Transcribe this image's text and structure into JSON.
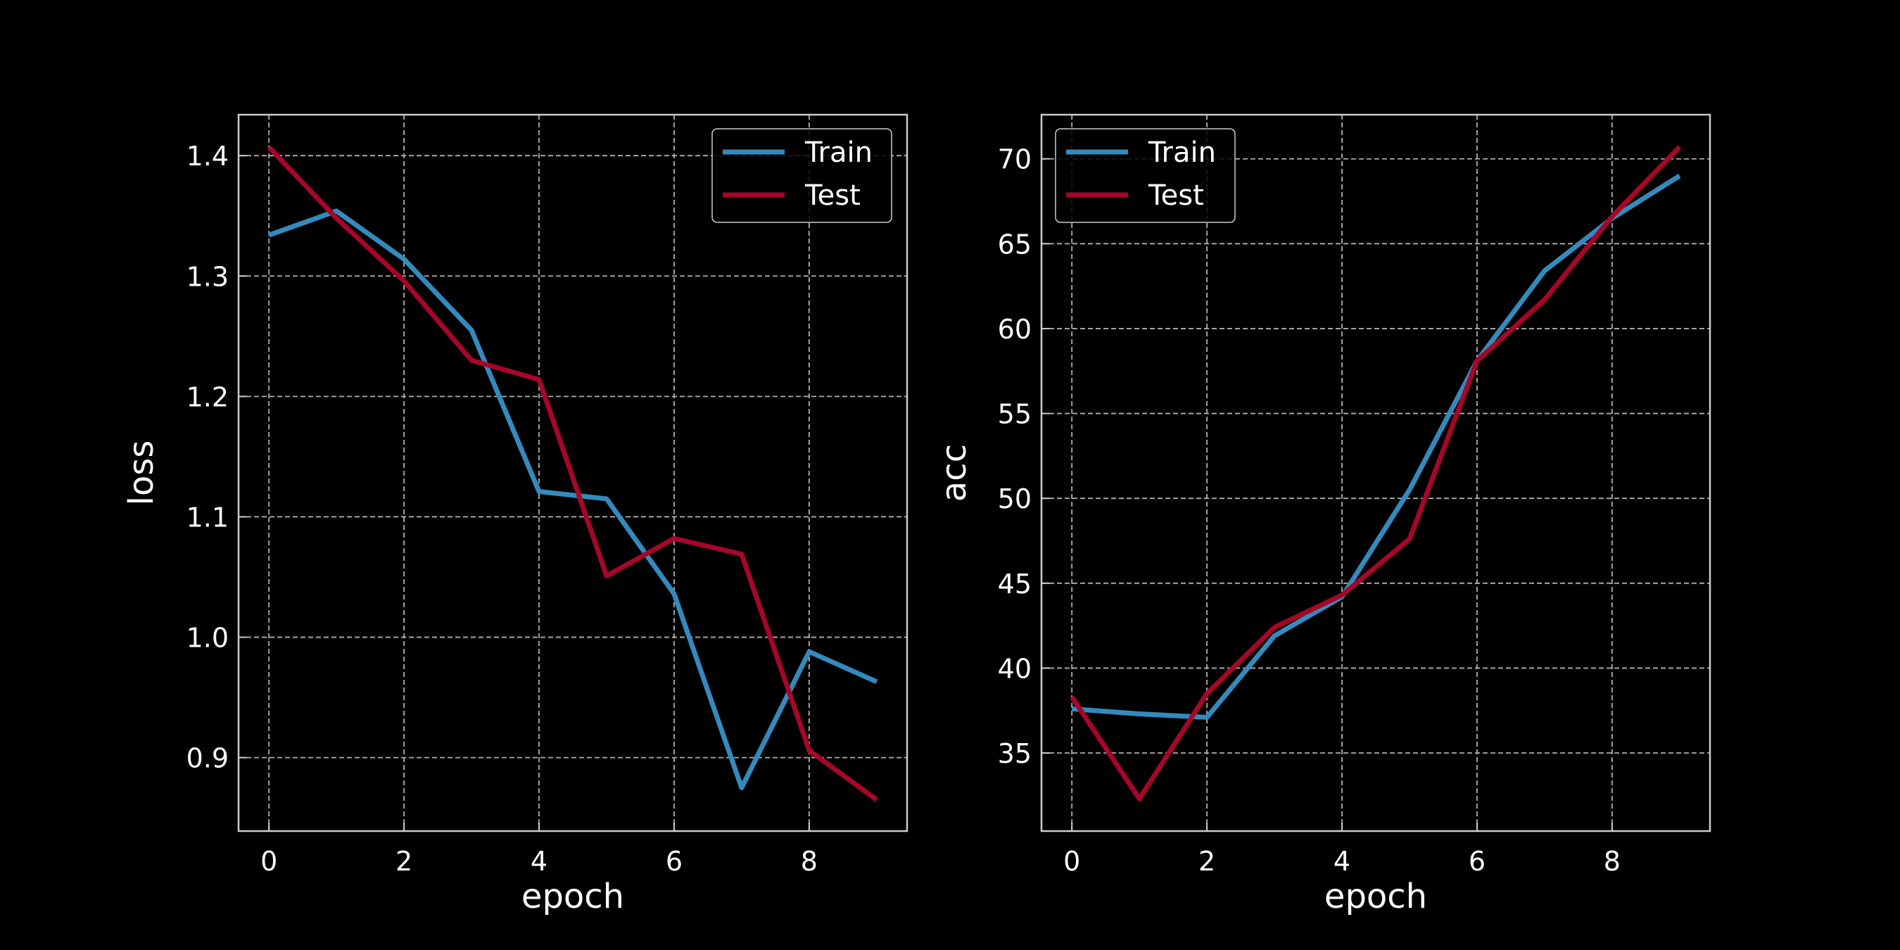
{
  "chart_data": [
    {
      "type": "line",
      "x": [
        0,
        1,
        2,
        3,
        4,
        5,
        6,
        7,
        8,
        9
      ],
      "xlabel": "epoch",
      "ylabel": "loss",
      "xlim": [
        -0.45,
        9.45
      ],
      "ylim": [
        0.839,
        1.434
      ],
      "xticks": [
        0,
        2,
        4,
        6,
        8
      ],
      "yticks": [
        0.9,
        1.0,
        1.1,
        1.2,
        1.3,
        1.4
      ],
      "ytick_decimals": 1,
      "grid": true,
      "legend_position": "top-right",
      "series": [
        {
          "name": "Train",
          "color": "#348abd",
          "values": [
            1.334,
            1.354,
            1.314,
            1.255,
            1.121,
            1.115,
            1.036,
            0.875,
            0.988,
            0.963
          ]
        },
        {
          "name": "Test",
          "color": "#a60628",
          "values": [
            1.407,
            1.348,
            1.296,
            1.23,
            1.214,
            1.051,
            1.082,
            1.069,
            0.906,
            0.865
          ]
        }
      ]
    },
    {
      "type": "line",
      "x": [
        0,
        1,
        2,
        3,
        4,
        5,
        6,
        7,
        8,
        9
      ],
      "xlabel": "epoch",
      "ylabel": "acc",
      "xlim": [
        -0.45,
        9.45
      ],
      "ylim": [
        30.4,
        72.6
      ],
      "xticks": [
        0,
        2,
        4,
        6,
        8
      ],
      "yticks": [
        35,
        40,
        45,
        50,
        55,
        60,
        65,
        70
      ],
      "ytick_decimals": 0,
      "grid": true,
      "legend_position": "top-left",
      "series": [
        {
          "name": "Train",
          "color": "#348abd",
          "values": [
            37.6,
            37.3,
            37.1,
            41.9,
            44.2,
            50.5,
            58.1,
            63.4,
            66.5,
            69.0
          ]
        },
        {
          "name": "Test",
          "color": "#a60628",
          "values": [
            38.3,
            32.3,
            38.5,
            42.4,
            44.3,
            47.6,
            58.1,
            61.7,
            66.6,
            70.7
          ]
        }
      ]
    }
  ]
}
